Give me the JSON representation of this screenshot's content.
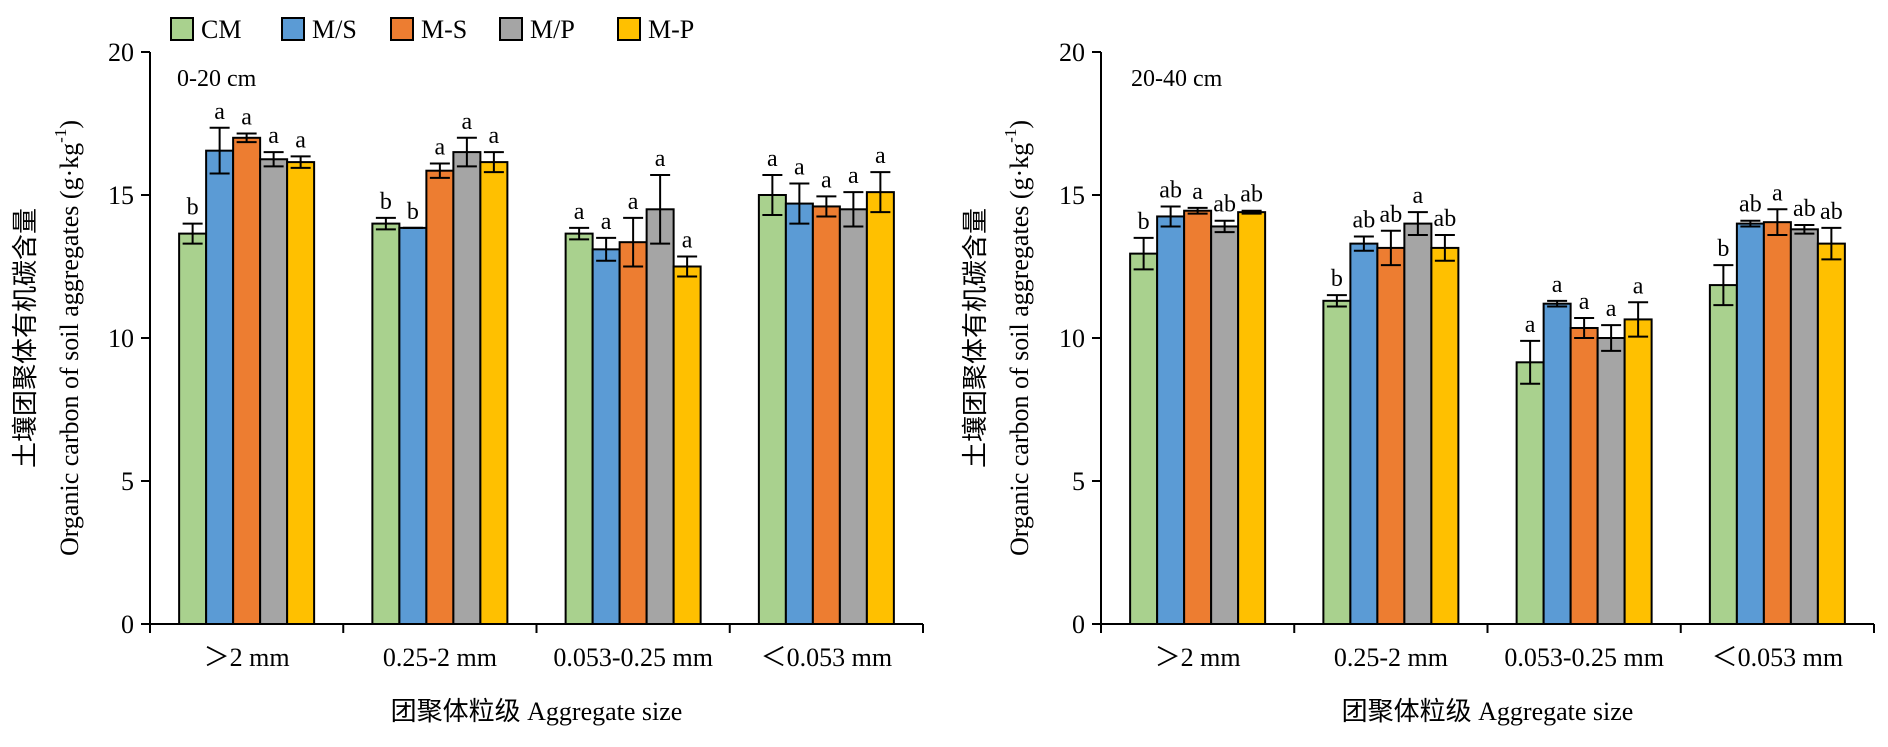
{
  "legend": [
    "CM",
    "M/S",
    "M-S",
    "M/P",
    "M-P"
  ],
  "colors": {
    "CM": "#a9d18e",
    "M/S": "#5b9bd5",
    "M-S": "#ed7d31",
    "M/P": "#a5a5a5",
    "M-P": "#ffc000"
  },
  "chart_data": [
    {
      "type": "bar",
      "title": "0-20 cm",
      "categories": [
        ">2 mm",
        "0.25-2 mm",
        "0.053-0.25 mm",
        "<0.053 mm"
      ],
      "category_labels": [
        "＞2 mm",
        "0.25-2 mm",
        "0.053-0.25 mm",
        "＜0.053 mm"
      ],
      "xlabel": "团聚体粒级 Aggregate size",
      "ylabel_cn": "土壤团聚体有机碳含量",
      "ylabel_en": "Organic carbon of soil aggregates (g·kg",
      "ylabel_sup": "-1",
      "ylabel_end": ")",
      "ylim": [
        0,
        20
      ],
      "yticks": [
        0,
        5,
        10,
        15,
        20
      ],
      "ytick_labels": [
        "0",
        "5",
        "10",
        "15",
        "20"
      ],
      "grid": false,
      "legend_position": "top-left",
      "series": [
        {
          "name": "CM",
          "values": [
            13.65,
            14.0,
            13.65,
            15.0
          ],
          "errors": [
            0.35,
            0.2,
            0.2,
            0.7
          ],
          "labels": [
            "b",
            "b",
            "a",
            "a"
          ]
        },
        {
          "name": "M/S",
          "values": [
            16.55,
            13.85,
            13.1,
            14.7
          ],
          "errors": [
            0.8,
            0.0,
            0.4,
            0.7
          ],
          "labels": [
            "a",
            "b",
            "a",
            "a"
          ]
        },
        {
          "name": "M-S",
          "values": [
            17.0,
            15.85,
            13.35,
            14.6
          ],
          "errors": [
            0.15,
            0.25,
            0.85,
            0.35
          ],
          "labels": [
            "a",
            "a",
            "a",
            "a"
          ]
        },
        {
          "name": "M/P",
          "values": [
            16.25,
            16.5,
            14.5,
            14.5
          ],
          "errors": [
            0.25,
            0.5,
            1.2,
            0.6
          ],
          "labels": [
            "a",
            "a",
            "a",
            "a"
          ]
        },
        {
          "name": "M-P",
          "values": [
            16.15,
            16.15,
            12.5,
            15.1
          ],
          "errors": [
            0.2,
            0.35,
            0.35,
            0.7
          ],
          "labels": [
            "a",
            "a",
            "a",
            "a"
          ]
        }
      ]
    },
    {
      "type": "bar",
      "title": "20-40 cm",
      "categories": [
        ">2 mm",
        "0.25-2 mm",
        "0.053-0.25 mm",
        "<0.053 mm"
      ],
      "category_labels": [
        "＞2 mm",
        "0.25-2 mm",
        "0.053-0.25 mm",
        "＜0.053 mm"
      ],
      "xlabel": "团聚体粒级 Aggregate size",
      "ylabel_cn": "土壤团聚体有机碳含量",
      "ylabel_en": "Organic carbon of soil aggregates (g·kg",
      "ylabel_sup": "-1",
      "ylabel_end": ")",
      "ylim": [
        0,
        20
      ],
      "yticks": [
        0,
        5,
        10,
        15,
        20
      ],
      "ytick_labels": [
        "0",
        "5",
        "10",
        "15",
        "20"
      ],
      "grid": false,
      "series": [
        {
          "name": "CM",
          "values": [
            12.95,
            11.3,
            9.15,
            11.85
          ],
          "errors": [
            0.55,
            0.2,
            0.75,
            0.7
          ],
          "labels": [
            "b",
            "b",
            "a",
            "b"
          ]
        },
        {
          "name": "M/S",
          "values": [
            14.25,
            13.3,
            11.2,
            14.0
          ],
          "errors": [
            0.35,
            0.25,
            0.1,
            0.1
          ],
          "labels": [
            "ab",
            "ab",
            "a",
            "ab"
          ]
        },
        {
          "name": "M-S",
          "values": [
            14.45,
            13.15,
            10.35,
            14.05
          ],
          "errors": [
            0.1,
            0.6,
            0.35,
            0.45
          ],
          "labels": [
            "a",
            "ab",
            "a",
            "a"
          ]
        },
        {
          "name": "M/P",
          "values": [
            13.9,
            14.0,
            10.0,
            13.8
          ],
          "errors": [
            0.2,
            0.4,
            0.45,
            0.15
          ],
          "labels": [
            "ab",
            "a",
            "a",
            "ab"
          ]
        },
        {
          "name": "M-P",
          "values": [
            14.4,
            13.15,
            10.65,
            13.3
          ],
          "errors": [
            0.05,
            0.45,
            0.6,
            0.55
          ],
          "labels": [
            "ab",
            "ab",
            "a",
            "ab"
          ]
        }
      ]
    }
  ]
}
